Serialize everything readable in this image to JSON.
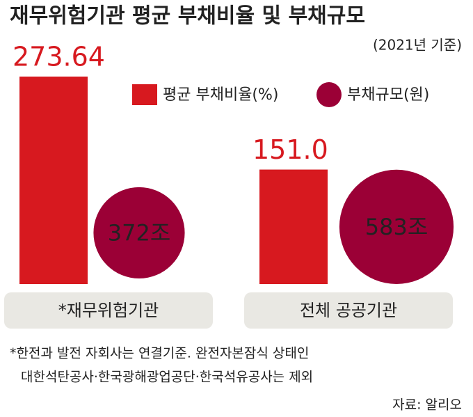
{
  "chart_data": {
    "type": "bar",
    "title": "재무위험기관 평균 부채비율 및 부채규모",
    "subtitle": "(2021년 기준)",
    "categories": [
      "*재무위험기관",
      "전체 공공기관"
    ],
    "series": [
      {
        "name": "평균 부채비율(%)",
        "color": "#d7191f",
        "mark": "bar",
        "values": [
          273.64,
          151.0
        ],
        "value_labels": [
          "273.64",
          "151.0"
        ]
      },
      {
        "name": "부채규모(원)",
        "color": "#9b0036",
        "mark": "bubble",
        "values": [
          372,
          583
        ],
        "value_labels": [
          "372조",
          "583조"
        ]
      }
    ],
    "notes": [
      "*한전과 발전 자회사는 연결기준. 완전자본잠식 상태인",
      "대한석탄공사·한국광해광업공단·한국석유공사는 제외"
    ],
    "source": "자료: 알리오"
  }
}
